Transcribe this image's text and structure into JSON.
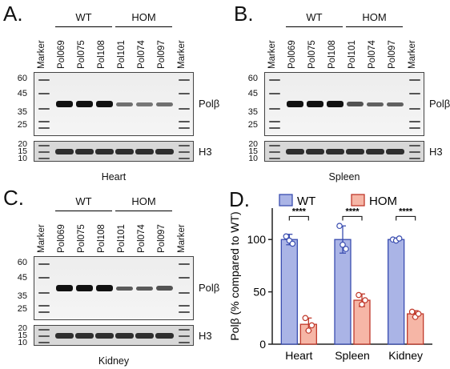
{
  "figure": {
    "panels": [
      {
        "letter": "A.",
        "tissue": "Heart",
        "wt_label": "WT",
        "hom_label": "HOM",
        "lanes": [
          "Marker",
          "Pol069",
          "Pol075",
          "Pol108",
          "Pol101",
          "Pol074",
          "Pol097",
          "Marker"
        ],
        "mw_gel": [
          "60",
          "45",
          "35",
          "25"
        ],
        "mw_h3": [
          "20",
          "15",
          "10"
        ],
        "protein_label": "Polβ",
        "loading_label": "H3"
      },
      {
        "letter": "B.",
        "tissue": "Spleen",
        "wt_label": "WT",
        "hom_label": "HOM",
        "lanes": [
          "Marker",
          "Pol069",
          "Pol075",
          "Pol108",
          "Pol101",
          "Pol074",
          "Pol097",
          "Marker"
        ],
        "mw_gel": [
          "60",
          "45",
          "35",
          "25"
        ],
        "mw_h3": [
          "20",
          "15",
          "10"
        ],
        "protein_label": "Polβ",
        "loading_label": "H3"
      },
      {
        "letter": "C.",
        "tissue": "Kidney",
        "wt_label": "WT",
        "hom_label": "HOM",
        "lanes": [
          "Marker",
          "Pol069",
          "Pol075",
          "Pol108",
          "Pol101",
          "Pol074",
          "Pol097",
          "Marker"
        ],
        "mw_gel": [
          "60",
          "45",
          "35",
          "25"
        ],
        "mw_h3": [
          "20",
          "15",
          "10"
        ],
        "protein_label": "Polβ",
        "loading_label": "H3"
      }
    ],
    "chart_panel_letter": "D."
  },
  "chart_data": {
    "type": "bar",
    "categories": [
      "Heart",
      "Spleen",
      "Kidney"
    ],
    "series": [
      {
        "name": "WT",
        "values": [
          100,
          100,
          100
        ],
        "errors": [
          5,
          13,
          1.5
        ],
        "points": [
          [
            103,
            99,
            96
          ],
          [
            113,
            95,
            91
          ],
          [
            100,
            99,
            101
          ]
        ],
        "color": "#aab4e6",
        "edge": "#3a4db0"
      },
      {
        "name": "HOM",
        "values": [
          19,
          42,
          29
        ],
        "errors": [
          6,
          6,
          3
        ],
        "points": [
          [
            25,
            13,
            18
          ],
          [
            47,
            38,
            42
          ],
          [
            31,
            26,
            29
          ]
        ],
        "color": "#f6b6a6",
        "edge": "#c0392b"
      }
    ],
    "ylabel": "Polβ (% compared to WT)",
    "ylim": [
      0,
      130
    ],
    "yticks": [
      "0",
      "50",
      "100"
    ],
    "significance": [
      "****",
      "****",
      "****"
    ],
    "legend_position": "top"
  }
}
